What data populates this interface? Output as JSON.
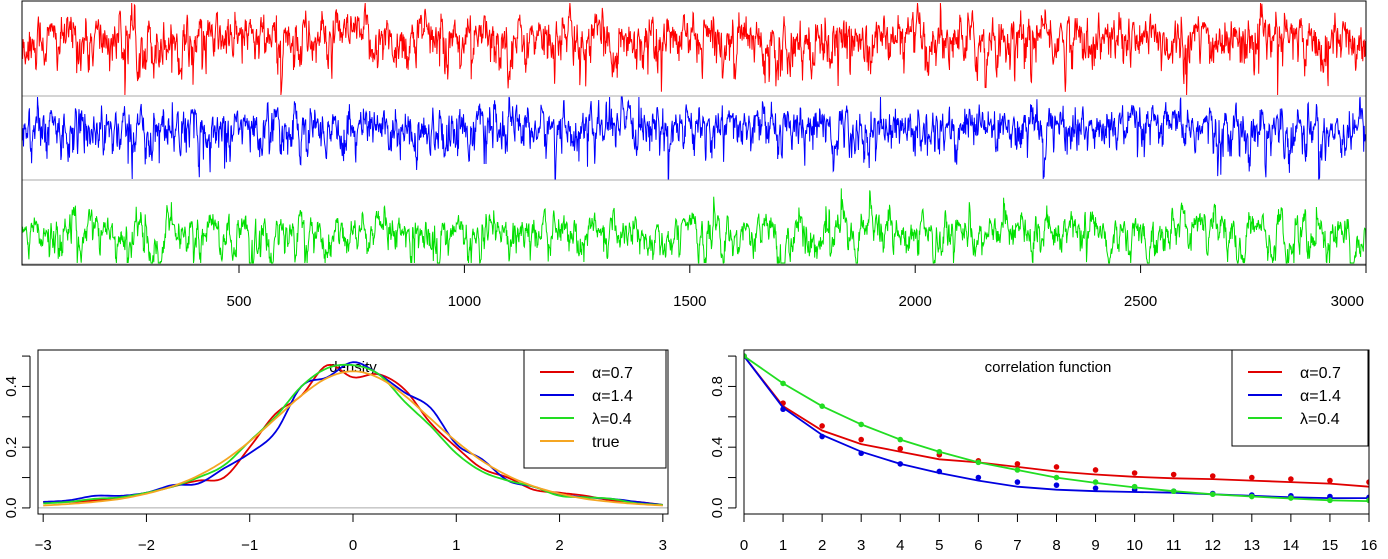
{
  "chart_data": [
    {
      "type": "line",
      "title": "",
      "description_series": "three simulated time series stacked",
      "n": 3000,
      "x_ticks": [
        500,
        1000,
        1500,
        2000,
        2500,
        3000
      ],
      "xlim": [
        1,
        3000
      ],
      "series": [
        {
          "name": "α=0.7",
          "color": "#ff0000",
          "lag1_corr": 0.68
        },
        {
          "name": "α=1.4",
          "color": "#0000ff",
          "lag1_corr": 0.65
        },
        {
          "name": "λ=0.4",
          "color": "#00e000",
          "lag1_corr": 0.82
        }
      ]
    },
    {
      "type": "line",
      "title": "density",
      "x": [
        -3,
        -2.75,
        -2.5,
        -2.25,
        -2,
        -1.75,
        -1.5,
        -1.25,
        -1,
        -0.75,
        -0.5,
        -0.25,
        0,
        0.25,
        0.5,
        0.75,
        1,
        1.25,
        1.5,
        1.75,
        2,
        2.25,
        2.5,
        2.75,
        3
      ],
      "xlim": [
        -3.05,
        3.05
      ],
      "ylim": [
        -0.02,
        0.52
      ],
      "x_ticks": [
        -3,
        -2,
        -1,
        0,
        1,
        2,
        3
      ],
      "y_ticks": [
        0.0,
        0.1,
        0.2,
        0.3,
        0.4,
        0.5
      ],
      "y_tick_labels": {
        "0.0": "0.0",
        "0.2": "0.2",
        "0.4": "0.4"
      },
      "legend_position": "top-right",
      "series": [
        {
          "name": "α=0.7",
          "color": "#e00000",
          "values": [
            0.02,
            0.02,
            0.025,
            0.035,
            0.05,
            0.07,
            0.09,
            0.1,
            0.2,
            0.31,
            0.37,
            0.47,
            0.43,
            0.44,
            0.39,
            0.28,
            0.2,
            0.13,
            0.1,
            0.06,
            0.05,
            0.04,
            0.025,
            0.02,
            0.01
          ]
        },
        {
          "name": "α=1.4",
          "color": "#0000e0",
          "values": [
            0.02,
            0.025,
            0.04,
            0.04,
            0.05,
            0.075,
            0.08,
            0.13,
            0.18,
            0.25,
            0.4,
            0.43,
            0.48,
            0.44,
            0.38,
            0.33,
            0.21,
            0.16,
            0.09,
            0.07,
            0.045,
            0.035,
            0.03,
            0.02,
            0.01
          ]
        },
        {
          "name": "λ=0.4",
          "color": "#22dd22",
          "values": [
            0.015,
            0.02,
            0.03,
            0.035,
            0.05,
            0.07,
            0.1,
            0.14,
            0.22,
            0.3,
            0.4,
            0.46,
            0.47,
            0.44,
            0.35,
            0.27,
            0.18,
            0.12,
            0.09,
            0.07,
            0.04,
            0.035,
            0.03,
            0.015,
            0.01
          ]
        },
        {
          "name": "true",
          "color": "#f5a623",
          "values": [
            0.008,
            0.013,
            0.02,
            0.03,
            0.047,
            0.071,
            0.106,
            0.155,
            0.219,
            0.294,
            0.37,
            0.428,
            0.45,
            0.428,
            0.37,
            0.294,
            0.219,
            0.155,
            0.106,
            0.071,
            0.047,
            0.03,
            0.02,
            0.013,
            0.008
          ]
        }
      ]
    },
    {
      "type": "line",
      "title": "correlation function",
      "x": [
        0,
        1,
        2,
        3,
        4,
        5,
        6,
        7,
        8,
        9,
        10,
        11,
        12,
        13,
        14,
        15,
        16
      ],
      "xlim": [
        0,
        16
      ],
      "ylim": [
        -0.04,
        1.04
      ],
      "x_ticks": [
        0,
        1,
        2,
        3,
        4,
        5,
        6,
        7,
        8,
        9,
        10,
        11,
        12,
        13,
        14,
        15,
        16
      ],
      "y_ticks": [
        0.0,
        0.2,
        0.4,
        0.6,
        0.8,
        1.0
      ],
      "y_tick_labels": {
        "0.0": "0.0",
        "0.4": "0.4",
        "0.8": "0.8"
      },
      "legend_position": "top-right",
      "series": [
        {
          "name": "α=0.7",
          "color": "#e00000",
          "line": [
            1,
            0.67,
            0.51,
            0.42,
            0.37,
            0.32,
            0.3,
            0.27,
            0.24,
            0.22,
            0.205,
            0.195,
            0.19,
            0.18,
            0.17,
            0.16,
            0.14
          ],
          "points": [
            1,
            0.69,
            0.54,
            0.45,
            0.39,
            0.35,
            0.31,
            0.29,
            0.27,
            0.25,
            0.23,
            0.22,
            0.21,
            0.2,
            0.19,
            0.18,
            0.17
          ]
        },
        {
          "name": "α=1.4",
          "color": "#0000e0",
          "line": [
            1,
            0.66,
            0.48,
            0.37,
            0.29,
            0.23,
            0.18,
            0.14,
            0.12,
            0.11,
            0.105,
            0.1,
            0.09,
            0.08,
            0.07,
            0.065,
            0.065
          ],
          "points": [
            1,
            0.65,
            0.47,
            0.36,
            0.29,
            0.24,
            0.2,
            0.17,
            0.15,
            0.13,
            0.12,
            0.11,
            0.095,
            0.085,
            0.08,
            0.075,
            0.07
          ]
        },
        {
          "name": "λ=0.4",
          "color": "#22dd22",
          "line": [
            1,
            0.82,
            0.67,
            0.55,
            0.45,
            0.37,
            0.3,
            0.25,
            0.2,
            0.165,
            0.135,
            0.11,
            0.09,
            0.075,
            0.062,
            0.05,
            0.045
          ],
          "points": [
            1,
            0.82,
            0.67,
            0.55,
            0.45,
            0.37,
            0.3,
            0.25,
            0.2,
            0.17,
            0.14,
            0.11,
            0.09,
            0.075,
            0.065,
            0.05,
            0.05
          ]
        }
      ]
    }
  ]
}
